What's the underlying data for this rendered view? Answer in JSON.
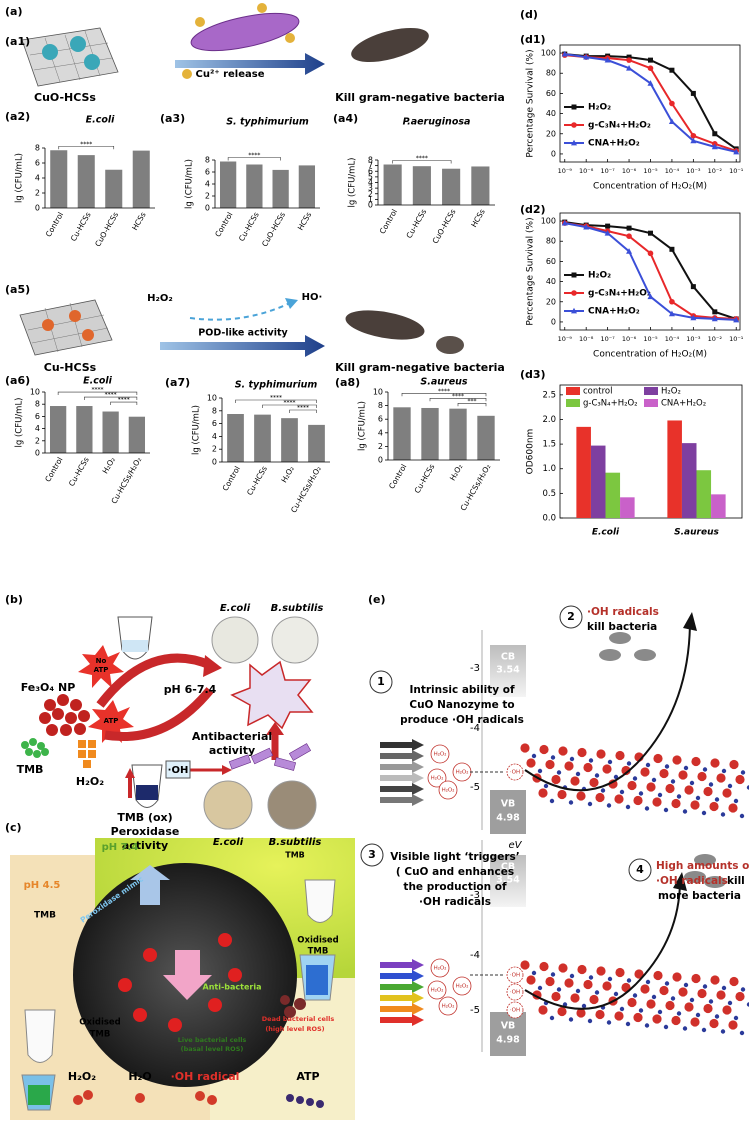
{
  "chart_data": [
    {
      "type": "bar",
      "panel": "(a2)",
      "title": "E.coli",
      "y_label": "lg (CFU/mL)",
      "categories": [
        "Control",
        "Cu-HCSs",
        "CuO-HCSs",
        "HCSs"
      ],
      "values": [
        7.7,
        7.05,
        5.1,
        7.65
      ],
      "color": "#7f7f7f",
      "ylim": [
        0,
        8
      ],
      "yticks": [
        0,
        2,
        4,
        6,
        8
      ],
      "significance": [
        "****"
      ]
    },
    {
      "type": "bar",
      "panel": "(a3)",
      "title": "S. typhimurium",
      "y_label": "lg (CFU/mL)",
      "categories": [
        "Control",
        "Cu-HCSs",
        "CuO-HCSs",
        "HCSs"
      ],
      "values": [
        7.75,
        7.25,
        6.35,
        7.1
      ],
      "color": "#7f7f7f",
      "ylim": [
        0,
        8
      ],
      "yticks": [
        0,
        2,
        4,
        6,
        8
      ],
      "significance": [
        "****"
      ]
    },
    {
      "type": "bar",
      "panel": "(a4)",
      "title": "P.aeruginosa",
      "y_label": "lg (CFU/mL)",
      "categories": [
        "Control",
        "Cu-HCSs",
        "CuO-HCSs",
        "HCSs"
      ],
      "values": [
        7.2,
        6.9,
        6.45,
        6.85
      ],
      "color": "#7f7f7f",
      "ylim": [
        0,
        8
      ],
      "yticks": [
        0,
        1,
        2,
        3,
        4,
        5,
        6,
        7,
        8
      ],
      "significance": [
        "****"
      ]
    },
    {
      "type": "bar",
      "panel": "(a6)",
      "title": "E.coli",
      "y_label": "lg (CFU/mL)",
      "categories": [
        "Control",
        "Cu-HCSs",
        "H₂O₂",
        "Cu-HCSs/H₂O₂"
      ],
      "values": [
        7.7,
        7.7,
        6.8,
        5.95
      ],
      "color": "#7f7f7f",
      "ylim": [
        0,
        10
      ],
      "yticks": [
        0,
        2,
        4,
        6,
        8,
        10
      ],
      "significance": [
        "****",
        "****",
        "****"
      ]
    },
    {
      "type": "bar",
      "panel": "(a7)",
      "title": "S. typhimurium",
      "y_label": "lg (CFU/mL)",
      "categories": [
        "Control",
        "Cu-HCSs",
        "H₂O₂",
        "Cu-HCSs/H₂O₂"
      ],
      "values": [
        7.5,
        7.4,
        6.85,
        5.8
      ],
      "color": "#7f7f7f",
      "ylim": [
        0,
        10
      ],
      "yticks": [
        0,
        2,
        4,
        6,
        8,
        10
      ],
      "significance": [
        "****",
        "****",
        "****"
      ]
    },
    {
      "type": "bar",
      "panel": "(a8)",
      "title": "S.aureus",
      "y_label": "lg (CFU/mL)",
      "categories": [
        "Control",
        "Cu-HCSs",
        "H₂O₂",
        "Cu-HCSs/H₂O₂"
      ],
      "values": [
        7.75,
        7.65,
        7.55,
        6.5
      ],
      "color": "#7f7f7f",
      "ylim": [
        0,
        10
      ],
      "yticks": [
        0,
        2,
        4,
        6,
        8,
        10
      ],
      "significance": [
        "****",
        "****",
        "***"
      ]
    },
    {
      "type": "line",
      "panel": "(d1)",
      "x_label": "Concentration of H₂O₂(M)",
      "y_label": "Percentage Survival (%)",
      "xscale": "log",
      "x": [
        1e-09,
        1e-08,
        1e-07,
        1e-06,
        1e-05,
        0.0001,
        0.001,
        0.01,
        0.1
      ],
      "series": [
        {
          "name": "H₂O₂",
          "color": "#111111",
          "values": [
            99,
            97,
            97,
            96,
            93,
            83,
            60,
            20,
            5
          ]
        },
        {
          "name": "g-C₃N₄+H₂O₂",
          "color": "#e8282a",
          "values": [
            98,
            96,
            95,
            93,
            85,
            50,
            18,
            10,
            3
          ]
        },
        {
          "name": "CNA+H₂O₂",
          "color": "#3b4fd8",
          "values": [
            99,
            96,
            93,
            85,
            70,
            32,
            13,
            7,
            2
          ]
        }
      ],
      "xlim": [
        6e-10,
        0.15
      ],
      "ylim": [
        -8,
        108
      ],
      "xticks": [
        {
          "value": 1e-09,
          "label": "10⁻⁹"
        },
        {
          "value": 1e-08,
          "label": "10⁻⁸"
        },
        {
          "value": 1e-07,
          "label": "10⁻⁷"
        },
        {
          "value": 1e-06,
          "label": "10⁻⁶"
        },
        {
          "value": 1e-05,
          "label": "10⁻⁵"
        },
        {
          "value": 0.0001,
          "label": "10⁻⁴"
        },
        {
          "value": 0.001,
          "label": "10⁻³"
        },
        {
          "value": 0.01,
          "label": "10⁻²"
        },
        {
          "value": 0.1,
          "label": "10⁻¹"
        }
      ],
      "yticks": [
        0,
        20,
        40,
        60,
        80,
        100
      ],
      "legend": "left"
    },
    {
      "type": "line",
      "panel": "(d2)",
      "x_label": "Concentration of H₂O₂(M)",
      "y_label": "Percentage Survival (%)",
      "xscale": "log",
      "x": [
        1e-09,
        1e-08,
        1e-07,
        1e-06,
        1e-05,
        0.0001,
        0.001,
        0.01,
        0.1
      ],
      "series": [
        {
          "name": "H₂O₂",
          "color": "#111111",
          "values": [
            99,
            96,
            95,
            93,
            88,
            72,
            35,
            10,
            3
          ]
        },
        {
          "name": "g-C₃N₄+H₂O₂",
          "color": "#e8282a",
          "values": [
            98,
            95,
            90,
            85,
            68,
            20,
            6,
            4,
            3
          ]
        },
        {
          "name": "CNA+H₂O₂",
          "color": "#3b4fd8",
          "values": [
            98,
            94,
            88,
            70,
            25,
            8,
            4,
            3,
            2
          ]
        }
      ],
      "xlim": [
        6e-10,
        0.15
      ],
      "ylim": [
        -8,
        108
      ],
      "xticks": [
        {
          "value": 1e-09,
          "label": "10⁻⁹"
        },
        {
          "value": 1e-08,
          "label": "10⁻⁸"
        },
        {
          "value": 1e-07,
          "label": "10⁻⁷"
        },
        {
          "value": 1e-06,
          "label": "10⁻⁶"
        },
        {
          "value": 1e-05,
          "label": "10⁻⁵"
        },
        {
          "value": 0.0001,
          "label": "10⁻⁴"
        },
        {
          "value": 0.001,
          "label": "10⁻³"
        },
        {
          "value": 0.01,
          "label": "10⁻²"
        },
        {
          "value": 0.1,
          "label": "10⁻¹"
        }
      ],
      "yticks": [
        0,
        20,
        40,
        60,
        80,
        100
      ],
      "legend": "left"
    },
    {
      "type": "grouped_bar",
      "panel": "(d3)",
      "y_label": "OD600nm",
      "categories": [
        "E.coli",
        "S.aureus"
      ],
      "series": [
        {
          "name": "control",
          "color": "#e8322a",
          "values": [
            1.85,
            1.98
          ]
        },
        {
          "name": "H₂O₂",
          "color": "#7e3fa0",
          "values": [
            1.47,
            1.52
          ]
        },
        {
          "name": "g-C₃N₄+H₂O₂",
          "color": "#7cc740",
          "values": [
            0.92,
            0.97
          ]
        },
        {
          "name": "CNA+H₂O₂",
          "color": "#c961c9",
          "values": [
            0.42,
            0.48
          ]
        }
      ],
      "ylim": [
        0,
        2.7
      ],
      "yticks": [
        {
          "value": 0,
          "label": "0.0"
        },
        0.5,
        {
          "value": 1,
          "label": "1.0"
        },
        1.5,
        {
          "value": 2,
          "label": "2.0"
        },
        2.5
      ],
      "legend": "top"
    }
  ],
  "panel_labels": {
    "a": "(a)",
    "a1": "(a1)",
    "a5": "(a5)",
    "b": "(b)",
    "c": "(c)",
    "d": "(d)",
    "e": "(e)"
  },
  "scheme_a1": {
    "material": "CuO-HCSs",
    "release": "Cu²⁺ release",
    "result": "Kill gram-negative bacteria"
  },
  "scheme_a5": {
    "reactant": "H₂O₂",
    "product": "HO·",
    "activity": "POD-like activity",
    "material": "Cu-HCSs",
    "result": "Kill gram-negative bacteria"
  },
  "panel_b": {
    "nanoparticle": "Fe₃O₄ NP",
    "no_atp": [
      "No",
      "ATP"
    ],
    "atp": "ATP",
    "ph": "pH 6-7.4",
    "tmb": "TMB",
    "h2o2": "H₂O₂",
    "antibacterial": [
      "Antibacterial",
      "activity"
    ],
    "oh": "·OH",
    "tmb_ox": "TMB (ox)",
    "peroxidase": [
      "Peroxidase",
      "activity"
    ],
    "dishes_top": [
      "E.coli",
      "B.subtilis"
    ],
    "dishes_bottom": [
      "E.coli",
      "B.subtilis"
    ],
    "dish_note": "TMB"
  },
  "panel_c": {
    "ph_neutral": "pH 7.4",
    "ph_acid": "pH 4.5",
    "tmb": "TMB",
    "mimic": "Peroxidase mimic",
    "oxidised_right": [
      "Oxidised",
      "TMB"
    ],
    "anti": "Anti-bacteria",
    "oxidised_left": [
      "Oxidised",
      "TMB"
    ],
    "live": [
      "Live bacterial cells",
      "(basal level ROS)"
    ],
    "dead": [
      "Dead bacterial cells",
      "(high level ROS)"
    ],
    "legend_row": [
      "H₂O₂",
      "H₂O",
      "·OH radical",
      "ATP"
    ]
  },
  "panel_e": {
    "energy_axis": "eV",
    "top": {
      "ticks": [
        "-3",
        "-4",
        "-5"
      ],
      "cb": [
        "CB",
        "3.54"
      ],
      "vb": [
        "VB",
        "4.98"
      ],
      "step_no": "1",
      "step": [
        "Intrinsic ability of",
        "CuO Nanozyme to",
        "produce ·OH radicals"
      ],
      "molecules": [
        "H₂O₂",
        "H₂O₂",
        "H₂O₂",
        "H₂O₂"
      ],
      "product": [
        "·OH"
      ],
      "result_no": "2",
      "result": [
        "·OH radicals",
        "kill bacteria"
      ]
    },
    "bottom": {
      "ticks": [
        "-3",
        "-4",
        "-5"
      ],
      "cb": [
        "CB",
        "3.54"
      ],
      "vb": [
        "VB",
        "4.98"
      ],
      "step_no": "3",
      "step": [
        "Visible light ‘triggers’",
        "( CuO and enhances",
        "the production of",
        "·OH radicals"
      ],
      "molecules": [
        "H₂O₂",
        "H₂O₂",
        "H₂O₂",
        "H₂O₂"
      ],
      "product": [
        "·OH",
        "·OH",
        "·OH"
      ],
      "result_no": "4",
      "result": [
        "High amounts of",
        "·OH radicals",
        "kill",
        "more bacteria"
      ]
    }
  }
}
